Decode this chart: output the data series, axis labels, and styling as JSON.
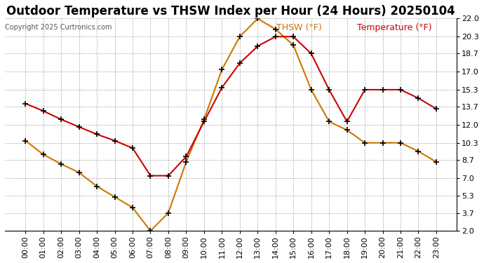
{
  "title": "Outdoor Temperature vs THSW Index per Hour (24 Hours) 20250104",
  "copyright": "Copyright 2025 Curtronics.com",
  "legend_thsw": "THSW (°F)",
  "legend_temp": "Temperature (°F)",
  "hours": [
    "00:00",
    "01:00",
    "02:00",
    "03:00",
    "04:00",
    "05:00",
    "06:00",
    "07:00",
    "08:00",
    "09:00",
    "10:00",
    "11:00",
    "12:00",
    "13:00",
    "14:00",
    "15:00",
    "16:00",
    "17:00",
    "18:00",
    "19:00",
    "20:00",
    "21:00",
    "22:00",
    "23:00"
  ],
  "temperature": [
    14.0,
    13.3,
    12.5,
    11.8,
    11.1,
    10.5,
    9.8,
    7.2,
    7.2,
    9.0,
    12.3,
    15.5,
    17.8,
    19.4,
    20.3,
    20.3,
    18.7,
    15.3,
    12.3,
    15.3,
    15.3,
    15.3,
    14.5,
    13.5
  ],
  "thsw": [
    10.5,
    9.2,
    8.3,
    7.5,
    6.2,
    5.2,
    4.2,
    2.0,
    3.7,
    8.5,
    12.5,
    17.2,
    20.3,
    22.0,
    21.0,
    19.5,
    15.3,
    12.3,
    11.5,
    10.3,
    10.3,
    10.3,
    9.5,
    8.5
  ],
  "temp_color": "#cc0000",
  "thsw_color": "#cc7700",
  "marker_color": "#000000",
  "background_color": "#ffffff",
  "grid_color": "#aaaaaa",
  "ylim_min": 2.0,
  "ylim_max": 22.0,
  "yticks": [
    2.0,
    3.7,
    5.3,
    7.0,
    8.7,
    10.3,
    12.0,
    13.7,
    15.3,
    17.0,
    18.7,
    20.3,
    22.0
  ],
  "title_fontsize": 12,
  "axis_fontsize": 8,
  "legend_fontsize": 9,
  "copyright_fontsize": 7,
  "copyright_color": "#555555"
}
